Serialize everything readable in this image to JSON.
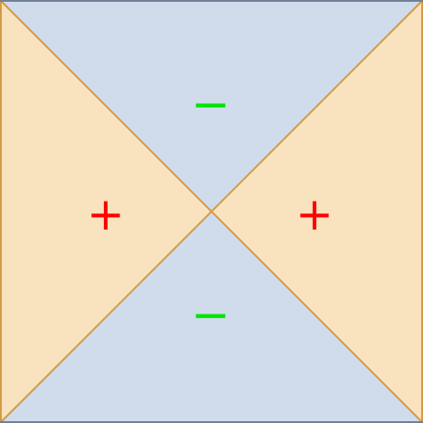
{
  "diagram": {
    "colors": {
      "positive_fill": "#f9e2be",
      "negative_fill": "#d0dbec",
      "diagonal_stroke": "#d49a45",
      "border_stroke": "#6f8196",
      "positive_sign": "#ff0000",
      "negative_sign": "#00e600"
    },
    "regions": {
      "top": {
        "sign": "−"
      },
      "left": {
        "sign": "+"
      },
      "right": {
        "sign": "+"
      },
      "bottom": {
        "sign": "−"
      }
    }
  }
}
